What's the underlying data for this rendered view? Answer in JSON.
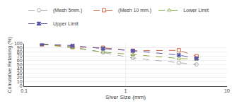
{
  "chart_data": {
    "type": "line",
    "xlabel": "Siver Size (mm)",
    "ylabel": "Comulative Retaining (%)",
    "x": [
      0.15,
      0.3,
      0.6,
      1.18,
      3.35,
      5.0
    ],
    "series": [
      {
        "name": "(Mesh 5mm.)",
        "color": "#aaaaaa",
        "marker": "circle-open",
        "line_style": "dash",
        "values": [
          98,
          92,
          79,
          66,
          55,
          51
        ]
      },
      {
        "name": "(Mesh 10 mm.)",
        "color": "#cc6644",
        "marker": "square-open",
        "line_style": "dash",
        "values": [
          98,
          92,
          90,
          83,
          84,
          70
        ]
      },
      {
        "name": "Lower Limit",
        "color": "#88aa44",
        "marker": "triangle-up-open",
        "line_style": "dash",
        "values": [
          98,
          90,
          80,
          74,
          65,
          63
        ]
      },
      {
        "name": "Upper Limit",
        "color": "#5555aa",
        "marker": "x",
        "line_style": "dash",
        "values": [
          99,
          95,
          88,
          83,
          73,
          65
        ]
      }
    ],
    "xlim": [
      0.1,
      10
    ],
    "xticks": [
      0.1,
      1,
      10
    ],
    "ylim": [
      0,
      100
    ],
    "yticks": [
      0,
      10,
      20,
      30,
      40,
      50,
      60,
      70,
      80,
      90,
      100
    ],
    "log": "x",
    "grid": true,
    "legend": "top"
  }
}
